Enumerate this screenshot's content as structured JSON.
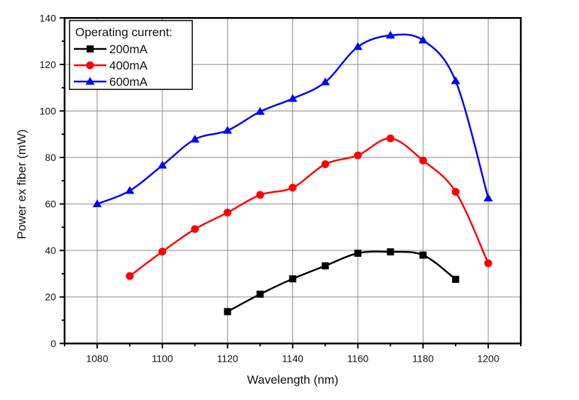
{
  "chart_data": {
    "type": "line",
    "title": "",
    "xlabel": "Wavelength (nm)",
    "ylabel": "Power ex fiber (mW)",
    "xlim": [
      1070,
      1210
    ],
    "ylim": [
      0,
      140
    ],
    "xticks": [
      1080,
      1100,
      1120,
      1140,
      1160,
      1180,
      1200
    ],
    "yticks": [
      0,
      20,
      40,
      60,
      80,
      100,
      120,
      140
    ],
    "x_minor_step": 10,
    "y_minor_step": 10,
    "grid": true,
    "smooth": true,
    "legend": {
      "title": "Operating current:",
      "position": "top-left"
    },
    "series": [
      {
        "name": "200mA",
        "color": "#000000",
        "marker": "square",
        "x": [
          1120,
          1130,
          1140,
          1150,
          1160,
          1170,
          1180,
          1190
        ],
        "values": [
          13.7,
          21.2,
          27.8,
          33.4,
          38.8,
          39.4,
          38.0,
          27.6
        ]
      },
      {
        "name": "400mA",
        "color": "#ff0000",
        "marker": "circle",
        "x": [
          1090,
          1100,
          1110,
          1120,
          1130,
          1140,
          1150,
          1160,
          1170,
          1180,
          1190,
          1200
        ],
        "values": [
          29.0,
          39.5,
          49.2,
          56.3,
          63.9,
          67.0,
          77.1,
          80.9,
          88.2,
          78.7,
          65.2,
          34.5
        ]
      },
      {
        "name": "600mA",
        "color": "#0000ff",
        "marker": "triangle",
        "x": [
          1080,
          1090,
          1100,
          1110,
          1120,
          1130,
          1140,
          1150,
          1160,
          1170,
          1180,
          1190,
          1200
        ],
        "values": [
          60.0,
          65.7,
          76.6,
          87.8,
          91.6,
          99.7,
          105.3,
          112.4,
          127.6,
          132.5,
          130.4,
          112.9,
          62.5
        ]
      }
    ]
  }
}
